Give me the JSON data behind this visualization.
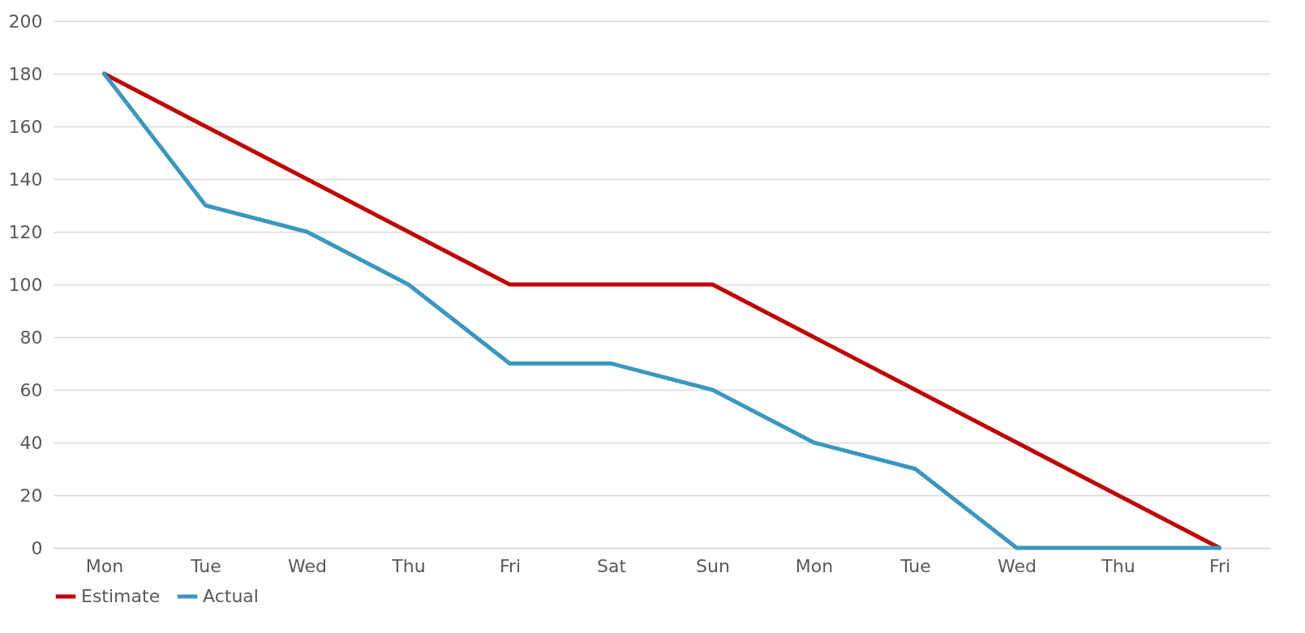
{
  "chart_data": {
    "type": "line",
    "categories": [
      "Mon",
      "Tue",
      "Wed",
      "Thu",
      "Fri",
      "Sat",
      "Sun",
      "Mon",
      "Tue",
      "Wed",
      "Thu",
      "Fri"
    ],
    "series": [
      {
        "name": "Estimate",
        "color": "#c00000",
        "values": [
          180,
          160,
          140,
          120,
          100,
          100,
          100,
          80,
          60,
          40,
          20,
          0
        ]
      },
      {
        "name": "Actual",
        "color": "#3a97c0",
        "values": [
          180,
          130,
          120,
          100,
          70,
          70,
          60,
          40,
          30,
          0,
          0,
          0
        ]
      }
    ],
    "ylim": [
      0,
      200
    ],
    "yticks": [
      0,
      20,
      40,
      60,
      80,
      100,
      120,
      140,
      160,
      180,
      200
    ],
    "grid": "y",
    "legend": "bottom"
  }
}
